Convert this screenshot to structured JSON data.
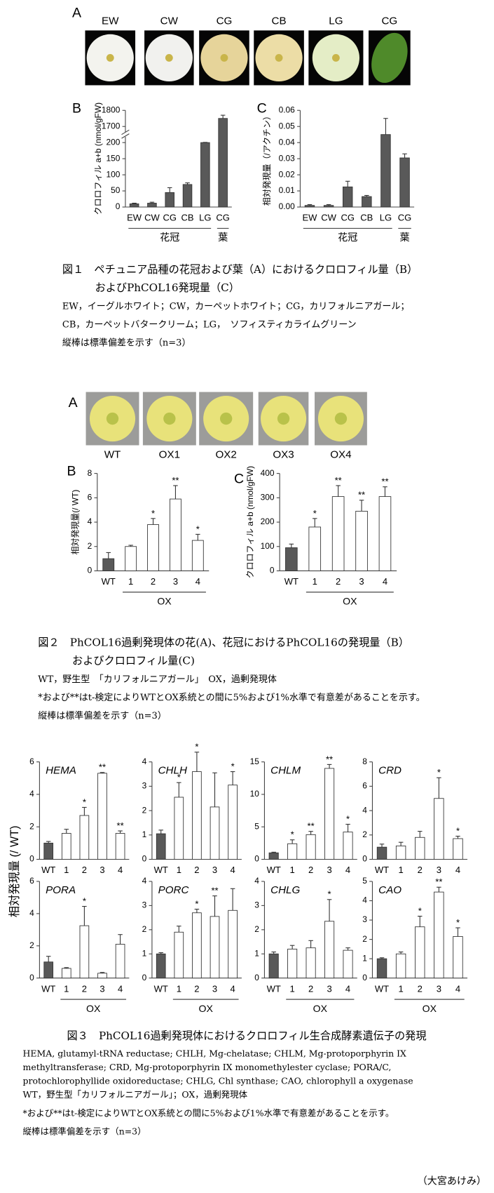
{
  "figure1": {
    "panel": "A",
    "photo_labels": [
      "EW",
      "CW",
      "CG",
      "CB",
      "LG",
      "CG"
    ],
    "caption": [
      "図１　ペチュニア品種の花冠および葉（A）におけるクロロフィル量（B）",
      "およびPhCOL16発現量（C）",
      "EW，イーグルホワイト；CW，カーペットホワイト；CG，カリフォルニアガール；",
      "CB，カーペットバタークリーム；LG，　ソフィスティカライムグリーン",
      "縦棒は標準偏差を示す（n=3）"
    ]
  },
  "figure2": {
    "panel": "A",
    "photo_labels": [
      "WT",
      "OX1",
      "OX2",
      "OX3",
      "OX4"
    ],
    "caption": [
      "図２　PhCOL16過剰発現体の花(A)、花冠におけるPhCOL16の発現量（B）",
      "およびクロロフィル量(C)",
      "WT，野生型　「カリフォルニアガール」　OX，過剰発現体",
      "*および**はt-検定によりWTとOX系統との間に5%および1%水準で有意差があることを示す。",
      "縦棒は標準偏差を示す（n=3）"
    ]
  },
  "figure3": {
    "ylabel": "相対発現量 (/ WT)",
    "caption": [
      "図３　PhCOL16過剰発現体におけるクロロフィル生合成酵素遺伝子の発現",
      "HEMA, glutamyl-tRNA reductase; CHLH, Mg-chelatase; CHLM, Mg-protoporphyrin IX",
      "methyltransferase; CRD, Mg-protoporphyrin IX monomethylester cyclase; PORA/C,",
      "protochlorophyllide oxidoreductase; CHLG, Chl synthase; CAO, chlorophyll a oxygenase",
      "WT，野生型「カリフォルニアガール」；OX，過剰発現体",
      "*および**はt-検定によりWTとOX系統との間に5%および1%水準で有意差があることを示す。",
      "縦棒は標準偏差を示す（n=3）"
    ]
  },
  "author": "（大宮あけみ）",
  "chart_data": [
    {
      "type": "bar",
      "panel": "B",
      "ylabel": "クロロフィル a+b (nmol/gFW)",
      "categories": [
        "EW",
        "CW",
        "CG",
        "CB",
        "LG",
        "CG"
      ],
      "values": [
        10,
        12,
        45,
        70,
        200,
        1750
      ],
      "errors": [
        2,
        3,
        15,
        5,
        20,
        20
      ],
      "colors": [
        "#595959",
        "#595959",
        "#595959",
        "#595959",
        "#595959",
        "#595959"
      ],
      "ylim": [
        0,
        1800
      ],
      "yticks": [
        0,
        50,
        100,
        150,
        200,
        1700,
        1800
      ],
      "axis_break": true,
      "groups": [
        {
          "label": "花冠",
          "size": 5
        },
        {
          "label": "葉",
          "size": 1
        }
      ]
    },
    {
      "type": "bar",
      "panel": "C",
      "ylabel": "相対発現量（/アクチン）",
      "categories": [
        "EW",
        "CW",
        "CG",
        "CB",
        "LG",
        "CG"
      ],
      "values": [
        0.001,
        0.001,
        0.0125,
        0.0065,
        0.045,
        0.0305
      ],
      "errors": [
        0.0005,
        0.0005,
        0.0035,
        0.0007,
        0.01,
        0.0025
      ],
      "colors": [
        "#595959",
        "#595959",
        "#595959",
        "#595959",
        "#595959",
        "#595959"
      ],
      "ylim": [
        0,
        0.06
      ],
      "yticks": [
        {
          "value": 0,
          "label": "0.00"
        },
        {
          "value": 0.01,
          "label": "0.01"
        },
        {
          "value": 0.02,
          "label": "0.02"
        },
        {
          "value": 0.03,
          "label": "0.03"
        },
        {
          "value": 0.04,
          "label": "0.04"
        },
        {
          "value": 0.05,
          "label": "0.05"
        },
        {
          "value": 0.06,
          "label": "0.06"
        }
      ],
      "groups": [
        {
          "label": "花冠",
          "size": 5
        },
        {
          "label": "葉",
          "size": 1
        }
      ]
    },
    {
      "type": "bar",
      "panel": "B",
      "ylabel": "相対発現量(/ WT)",
      "categories": [
        "WT",
        "1",
        "2",
        "3",
        "4"
      ],
      "values": [
        1.0,
        2.0,
        3.8,
        5.9,
        2.5
      ],
      "errors": [
        0.5,
        0.1,
        0.5,
        1.1,
        0.5
      ],
      "marks": [
        null,
        null,
        "*",
        "**",
        "*"
      ],
      "colors": [
        "#595959",
        "#ffffff",
        "#ffffff",
        "#ffffff",
        "#ffffff"
      ],
      "ylim": [
        0,
        8
      ],
      "yticks": [
        0,
        2,
        4,
        6,
        8
      ],
      "groups": [
        {
          "label": null,
          "size": 1
        },
        {
          "label": "OX",
          "size": 4
        }
      ]
    },
    {
      "type": "bar",
      "panel": "C",
      "ylabel": "クロロフィル a+b (nmol/gFW)",
      "categories": [
        "WT",
        "1",
        "2",
        "3",
        "4"
      ],
      "values": [
        95,
        180,
        305,
        245,
        305
      ],
      "errors": [
        15,
        35,
        45,
        45,
        40
      ],
      "marks": [
        null,
        "*",
        "**",
        "**",
        "**"
      ],
      "colors": [
        "#595959",
        "#ffffff",
        "#ffffff",
        "#ffffff",
        "#ffffff"
      ],
      "ylim": [
        0,
        400
      ],
      "yticks": [
        0,
        100,
        200,
        300,
        400
      ],
      "groups": [
        {
          "label": null,
          "size": 1
        },
        {
          "label": "OX",
          "size": 4
        }
      ]
    },
    {
      "type": "bar",
      "title": "HEMA",
      "categories": [
        "WT",
        "1",
        "2",
        "3",
        "4"
      ],
      "values": [
        1.0,
        1.6,
        2.7,
        5.3,
        1.6
      ],
      "errors": [
        0.1,
        0.25,
        0.5,
        0.05,
        0.15
      ],
      "marks": [
        null,
        null,
        "*",
        "**",
        "**"
      ],
      "colors": [
        "#595959",
        "#ffffff",
        "#ffffff",
        "#ffffff",
        "#ffffff"
      ],
      "ylim": [
        0,
        6
      ],
      "yticks": [
        0,
        2,
        4,
        6
      ]
    },
    {
      "type": "bar",
      "title": "CHLH",
      "categories": [
        "WT",
        "1",
        "2",
        "3",
        "4"
      ],
      "values": [
        1.05,
        2.55,
        3.6,
        2.15,
        3.05
      ],
      "errors": [
        0.15,
        0.6,
        0.8,
        1.4,
        0.55
      ],
      "marks": [
        null,
        "*",
        "*",
        null,
        "*"
      ],
      "colors": [
        "#595959",
        "#ffffff",
        "#ffffff",
        "#ffffff",
        "#ffffff"
      ],
      "ylim": [
        0,
        4
      ],
      "yticks": [
        0,
        1,
        2,
        3,
        4
      ]
    },
    {
      "type": "bar",
      "title": "CHLM",
      "categories": [
        "WT",
        "1",
        "2",
        "3",
        "4"
      ],
      "values": [
        1.0,
        2.4,
        3.8,
        14,
        4.2
      ],
      "errors": [
        0.1,
        0.6,
        0.5,
        0.6,
        1.2
      ],
      "marks": [
        null,
        "*",
        "**",
        "**",
        "*"
      ],
      "colors": [
        "#595959",
        "#ffffff",
        "#ffffff",
        "#ffffff",
        "#ffffff"
      ],
      "ylim": [
        0,
        15
      ],
      "yticks": [
        0,
        5,
        10,
        15
      ]
    },
    {
      "type": "bar",
      "title": "CRD",
      "categories": [
        "WT",
        "1",
        "2",
        "3",
        "4"
      ],
      "values": [
        1.0,
        1.1,
        1.8,
        5.0,
        1.7
      ],
      "errors": [
        0.25,
        0.3,
        0.5,
        1.7,
        0.2
      ],
      "marks": [
        null,
        null,
        null,
        "*",
        "*"
      ],
      "colors": [
        "#595959",
        "#ffffff",
        "#ffffff",
        "#ffffff",
        "#ffffff"
      ],
      "ylim": [
        0,
        8
      ],
      "yticks": [
        0,
        2,
        4,
        6,
        8
      ]
    },
    {
      "type": "bar",
      "title": "PORA",
      "categories": [
        "WT",
        "1",
        "2",
        "3",
        "4"
      ],
      "values": [
        1.0,
        0.6,
        3.25,
        0.3,
        2.1
      ],
      "errors": [
        0.35,
        0.05,
        1.2,
        0.05,
        0.6
      ],
      "marks": [
        null,
        null,
        "*",
        null,
        null
      ],
      "colors": [
        "#595959",
        "#ffffff",
        "#ffffff",
        "#ffffff",
        "#ffffff"
      ],
      "ylim": [
        0,
        6
      ],
      "yticks": [
        0,
        2,
        4,
        6
      ],
      "groups": [
        {
          "label": null,
          "size": 1
        },
        {
          "label": "OX",
          "size": 4
        }
      ]
    },
    {
      "type": "bar",
      "title": "PORC",
      "categories": [
        "WT",
        "1",
        "2",
        "3",
        "4"
      ],
      "values": [
        1.0,
        1.9,
        2.7,
        2.55,
        2.8
      ],
      "errors": [
        0.05,
        0.25,
        0.15,
        0.85,
        0.9
      ],
      "marks": [
        null,
        null,
        "*",
        "**",
        null
      ],
      "colors": [
        "#595959",
        "#ffffff",
        "#ffffff",
        "#ffffff",
        "#ffffff"
      ],
      "ylim": [
        0,
        4
      ],
      "yticks": [
        0,
        1,
        2,
        3,
        4
      ],
      "groups": [
        {
          "label": null,
          "size": 1
        },
        {
          "label": "OX",
          "size": 4
        }
      ]
    },
    {
      "type": "bar",
      "title": "CHLG",
      "categories": [
        "WT",
        "1",
        "2",
        "3",
        "4"
      ],
      "values": [
        1.0,
        1.2,
        1.25,
        2.35,
        1.15
      ],
      "errors": [
        0.08,
        0.15,
        0.3,
        0.9,
        0.1
      ],
      "marks": [
        null,
        null,
        null,
        "*",
        null
      ],
      "colors": [
        "#595959",
        "#ffffff",
        "#ffffff",
        "#ffffff",
        "#ffffff"
      ],
      "ylim": [
        0,
        4
      ],
      "yticks": [
        0,
        1,
        2,
        3,
        4
      ],
      "groups": [
        {
          "label": null,
          "size": 1
        },
        {
          "label": "OX",
          "size": 4
        }
      ]
    },
    {
      "type": "bar",
      "title": "CAO",
      "categories": [
        "WT",
        "1",
        "2",
        "3",
        "4"
      ],
      "values": [
        1.0,
        1.25,
        2.65,
        4.45,
        2.15
      ],
      "errors": [
        0.05,
        0.1,
        0.55,
        0.25,
        0.45
      ],
      "marks": [
        null,
        null,
        "*",
        "**",
        "*"
      ],
      "colors": [
        "#595959",
        "#ffffff",
        "#ffffff",
        "#ffffff",
        "#ffffff"
      ],
      "ylim": [
        0,
        5
      ],
      "yticks": [
        0,
        1,
        2,
        3,
        4,
        5
      ],
      "groups": [
        {
          "label": null,
          "size": 1
        },
        {
          "label": "OX",
          "size": 4
        }
      ]
    }
  ]
}
